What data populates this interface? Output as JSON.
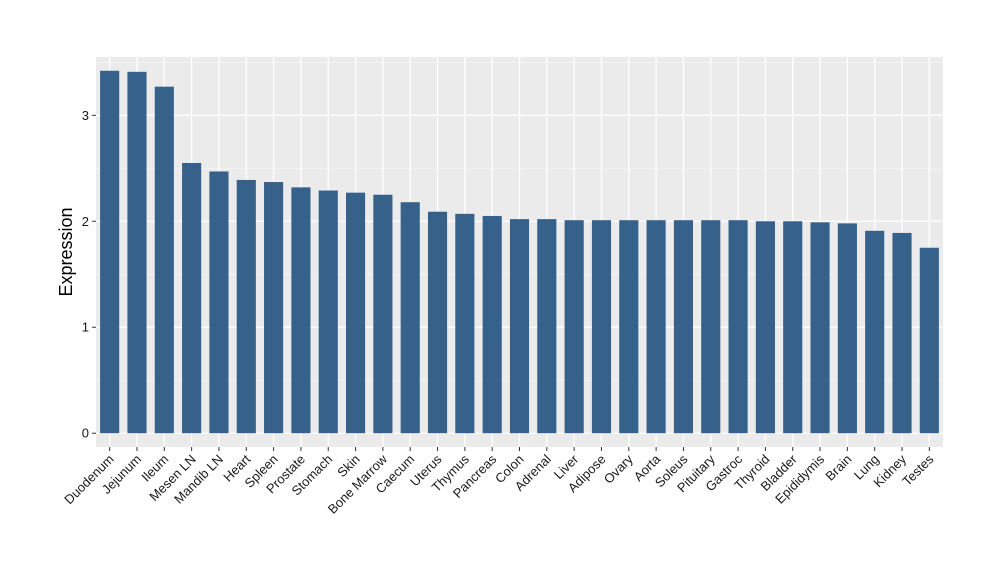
{
  "chart_data": {
    "type": "bar",
    "title": "",
    "xlabel": "",
    "ylabel": "Expression",
    "categories": [
      "Duodenum",
      "Jejunum",
      "Ileum",
      "Mesen LN",
      "Mandib LN",
      "Heart",
      "Spleen",
      "Prostate",
      "Stomach",
      "Skin",
      "Bone Marrow",
      "Caecum",
      "Uterus",
      "Thymus",
      "Pancreas",
      "Colon",
      "Adrenal",
      "Liver",
      "Adipose",
      "Ovary",
      "Aorta",
      "Soleus",
      "Pituitary",
      "Gastroc",
      "Thyroid",
      "Bladder",
      "Epididymis",
      "Brain",
      "Lung",
      "Kidney",
      "Testes"
    ],
    "values": [
      3.42,
      3.41,
      3.27,
      2.55,
      2.47,
      2.39,
      2.37,
      2.32,
      2.29,
      2.27,
      2.25,
      2.18,
      2.09,
      2.07,
      2.05,
      2.02,
      2.02,
      2.01,
      2.01,
      2.01,
      2.01,
      2.01,
      2.01,
      2.01,
      2.0,
      2.0,
      1.99,
      1.98,
      1.91,
      1.89,
      1.75
    ],
    "ylim": [
      -0.13,
      3.55
    ],
    "yticks": [
      0,
      1,
      2,
      3
    ],
    "grid": true,
    "colors": {
      "bar": "#36618a",
      "panel": "#ebebeb",
      "grid_major": "#ffffff",
      "grid_minor": "#f5f5f5",
      "tick": "#333333"
    }
  }
}
